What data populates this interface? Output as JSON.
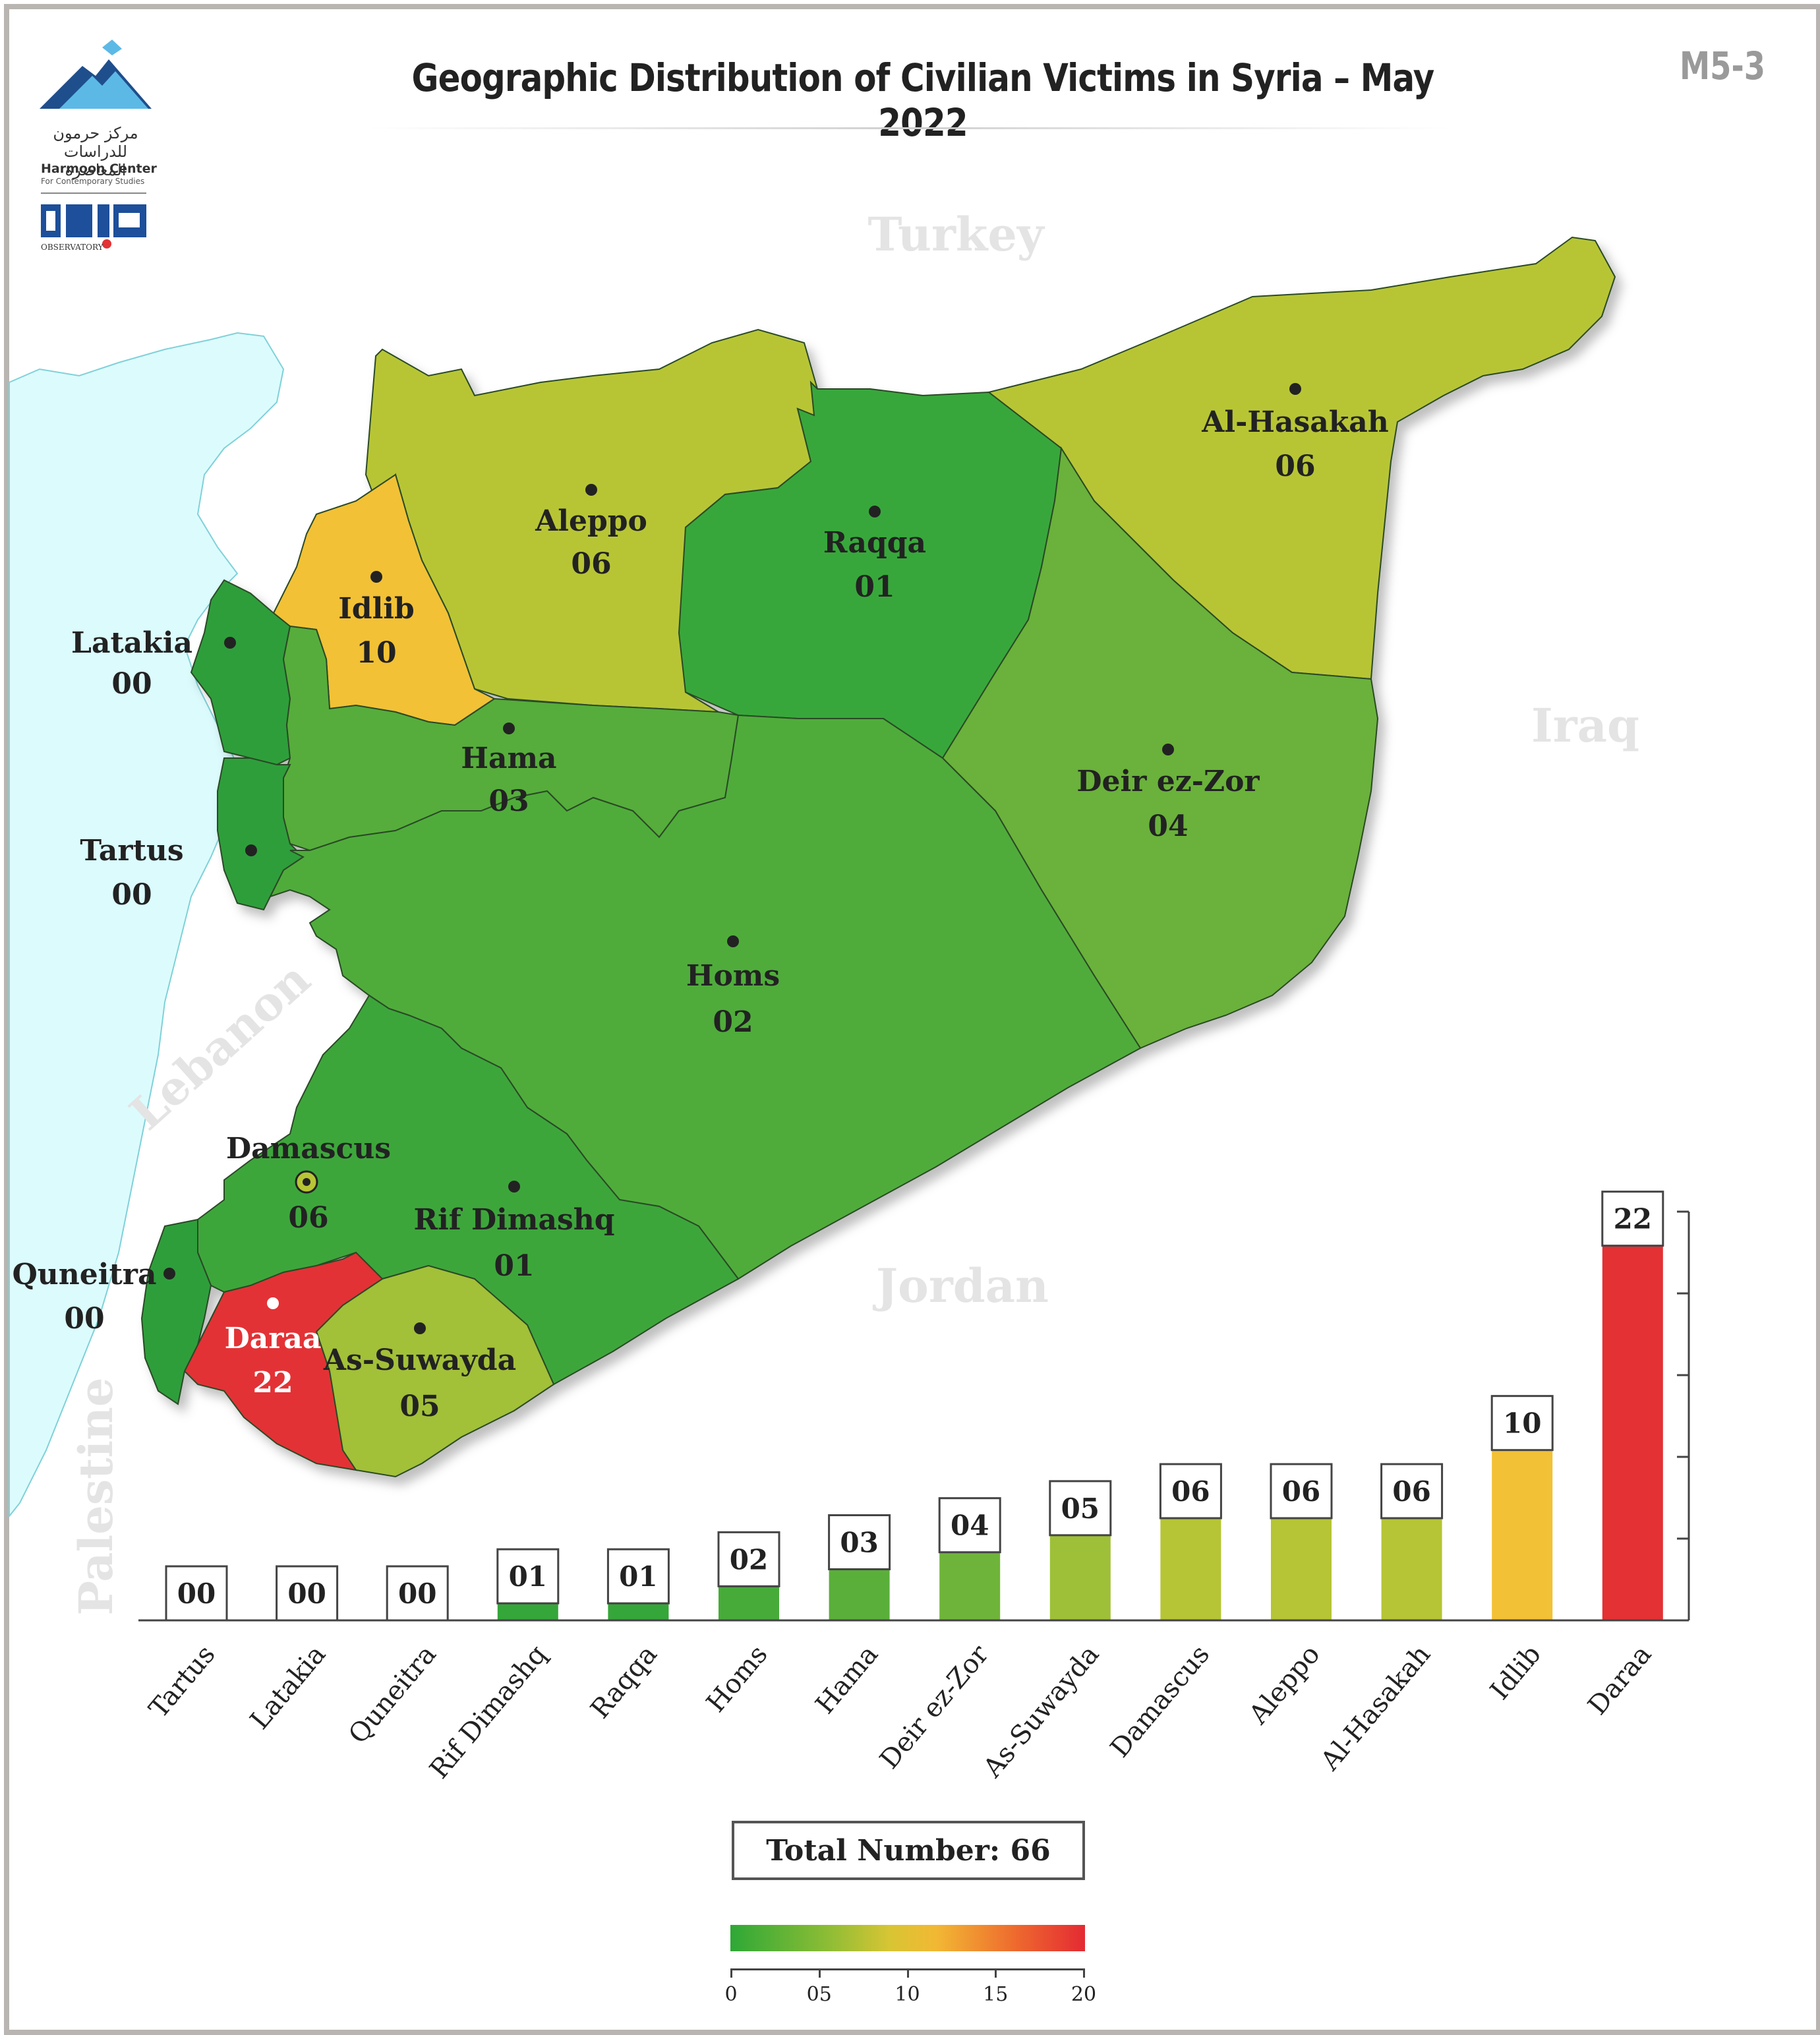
{
  "header": {
    "title": "Geographic Distribution of Civilian Victims in Syria – May 2022",
    "code": "M5-3",
    "logo_ar": "مركز حرمون للدراسات المعاصرة",
    "logo_en": "Harmoon Center",
    "logo_en_sub": "For Contemporary Studies",
    "logo2_text": "OBSERVATORY"
  },
  "map": {
    "countries": [
      "Turkey",
      "Iraq",
      "Jordan",
      "Lebanon",
      "Palestine"
    ],
    "regions": [
      {
        "name": "Al-Hasakah",
        "value": "06",
        "color": "#b7c535"
      },
      {
        "name": "Aleppo",
        "value": "06",
        "color": "#b7c535"
      },
      {
        "name": "Raqqa",
        "value": "01",
        "color": "#37a73a"
      },
      {
        "name": "Idlib",
        "value": "10",
        "color": "#f2c135"
      },
      {
        "name": "Latakia",
        "value": "00",
        "color": "#2f9e3a"
      },
      {
        "name": "Hama",
        "value": "03",
        "color": "#56ad3a"
      },
      {
        "name": "Deir ez-Zor",
        "value": "04",
        "color": "#6bb23a"
      },
      {
        "name": "Tartus",
        "value": "00",
        "color": "#2f9e3a"
      },
      {
        "name": "Homs",
        "value": "02",
        "color": "#4fac3a"
      },
      {
        "name": "Damascus",
        "value": "06",
        "color": "#b7c535"
      },
      {
        "name": "Rif Dimashq",
        "value": "01",
        "color": "#3da63a"
      },
      {
        "name": "Quneitra",
        "value": "00",
        "color": "#2f9e3a"
      },
      {
        "name": "Daraa",
        "value": "22",
        "color": "#e33134"
      },
      {
        "name": "As-Suwayda",
        "value": "05",
        "color": "#a2c038"
      }
    ]
  },
  "chart_data": {
    "type": "bar",
    "categories": [
      "Tartus",
      "Latakia",
      "Quneitra",
      "Rif Dimashq",
      "Raqqa",
      "Homs",
      "Hama",
      "Deir ez-Zor",
      "As-Suwayda",
      "Damascus",
      "Aleppo",
      "Al-Hasakah",
      "Idlib",
      "Daraa"
    ],
    "values": [
      0,
      0,
      0,
      1,
      1,
      2,
      3,
      4,
      5,
      6,
      6,
      6,
      10,
      22
    ],
    "labels": [
      "00",
      "00",
      "00",
      "01",
      "01",
      "02",
      "03",
      "04",
      "05",
      "06",
      "06",
      "06",
      "10",
      "22"
    ],
    "colors": [
      "#2fa33a",
      "#2fa33a",
      "#2fa33a",
      "#35a63a",
      "#35a63a",
      "#47ab3a",
      "#5aaf3a",
      "#6fb43a",
      "#9ec038",
      "#b5c535",
      "#b5c535",
      "#b5c535",
      "#f2c135",
      "#e33134"
    ],
    "ylim": [
      0,
      24
    ],
    "total_label": "Total Number: 66"
  },
  "legend": {
    "colors": [
      "#2ea836",
      "#e42a33"
    ],
    "ticks": [
      "0",
      "05",
      "10",
      "15",
      "20"
    ]
  }
}
